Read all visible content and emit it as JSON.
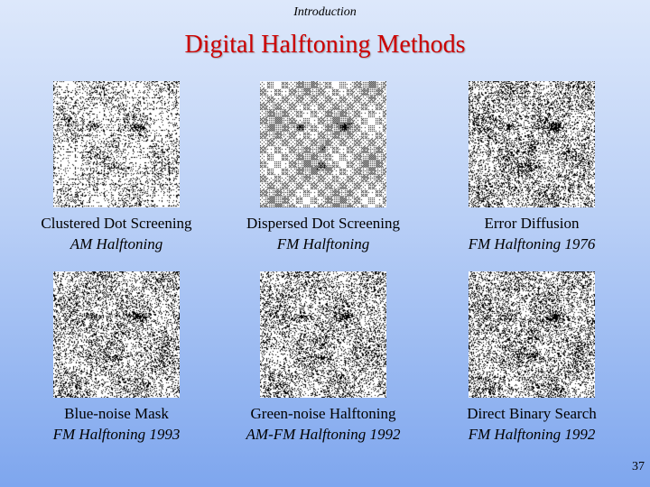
{
  "header": {
    "text": "Introduction"
  },
  "title": "Digital Halftoning Methods",
  "methods": [
    {
      "name": "Clustered Dot Screening",
      "sub": "AM Halftoning",
      "icon": "clustered-dot-halftone-image"
    },
    {
      "name": "Dispersed Dot Screening",
      "sub": "FM Halftoning",
      "icon": "dispersed-dot-halftone-image"
    },
    {
      "name": "Error Diffusion",
      "sub": "FM Halftoning 1976",
      "icon": "error-diffusion-halftone-image"
    },
    {
      "name": "Blue-noise Mask",
      "sub": "FM Halftoning 1993",
      "icon": "blue-noise-halftone-image"
    },
    {
      "name": "Green-noise Halftoning",
      "sub": "AM-FM Halftoning 1992",
      "icon": "green-noise-halftone-image"
    },
    {
      "name": "Direct Binary Search",
      "sub": "FM Halftoning 1992",
      "icon": "direct-binary-search-halftone-image"
    }
  ],
  "page_number": "37",
  "colors": {
    "title": "#cc0000",
    "background_top": "#dde8fb",
    "background_bottom": "#7ea6ee"
  }
}
